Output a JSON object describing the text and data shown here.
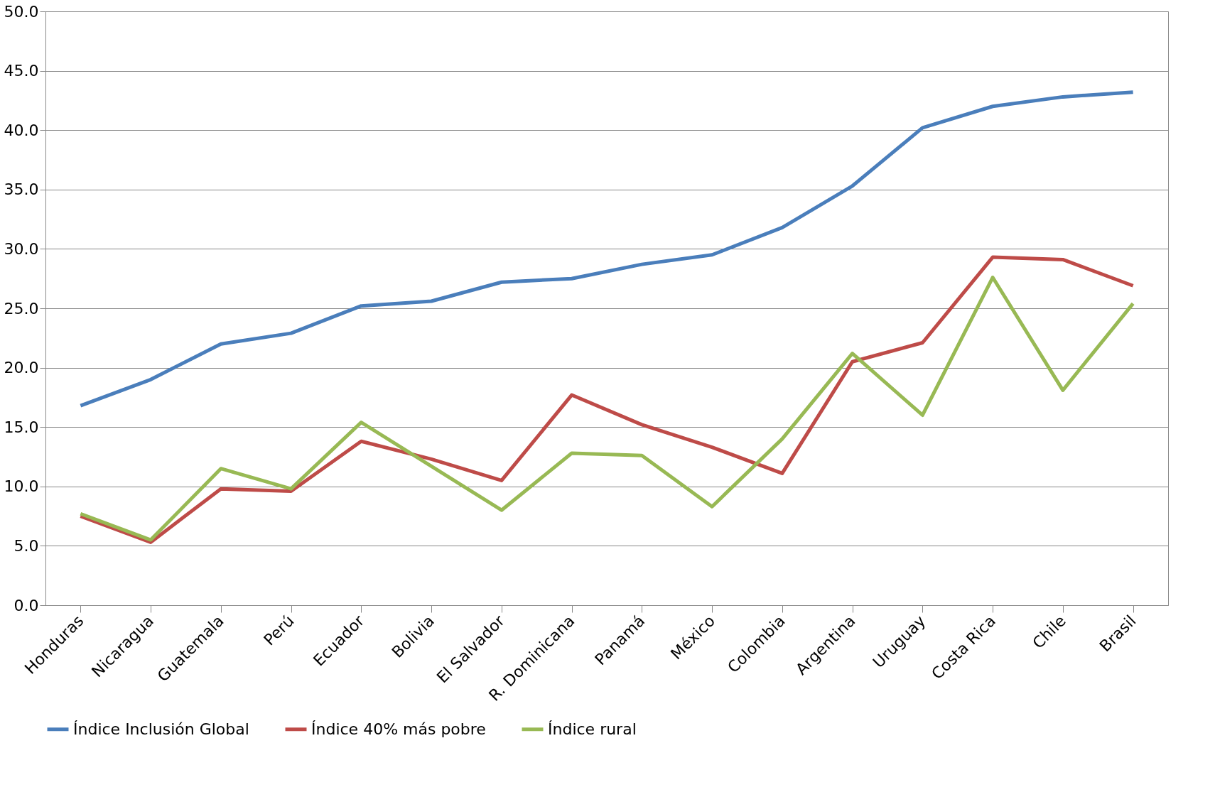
{
  "chart_data": {
    "type": "line",
    "categories": [
      "Honduras",
      "Nicaragua",
      "Guatemala",
      "Perú",
      "Ecuador",
      "Bolivia",
      "El Salvador",
      "R. Dominicana",
      "Panamá",
      "México",
      "Colombia",
      "Argentina",
      "Uruguay",
      "Costa Rica",
      "Chile",
      "Brasil"
    ],
    "series": [
      {
        "name": "Índice Inclusión Global",
        "color": "#4a7ebb",
        "values": [
          16.8,
          19.0,
          22.0,
          22.9,
          25.2,
          25.6,
          27.2,
          27.5,
          28.7,
          29.5,
          31.8,
          35.3,
          40.2,
          42.0,
          42.8,
          43.2
        ]
      },
      {
        "name": "Índice 40% más pobre",
        "color": "#be4b48",
        "values": [
          7.5,
          5.3,
          9.8,
          9.6,
          13.8,
          12.3,
          10.5,
          17.7,
          15.2,
          13.3,
          11.1,
          20.5,
          22.1,
          29.3,
          29.1,
          26.9
        ]
      },
      {
        "name": "Índice rural",
        "color": "#98b954",
        "values": [
          7.7,
          5.5,
          11.5,
          9.8,
          15.4,
          11.7,
          8.0,
          12.8,
          12.6,
          8.3,
          14.0,
          21.2,
          16.0,
          27.6,
          18.1,
          25.4
        ]
      }
    ],
    "ylim": [
      0,
      50
    ],
    "yticks": [
      {
        "value": 0,
        "label": "0.0"
      },
      {
        "value": 5,
        "label": "5.0"
      },
      {
        "value": 10,
        "label": "10.0"
      },
      {
        "value": 15,
        "label": "15.0"
      },
      {
        "value": 20,
        "label": "20.0"
      },
      {
        "value": 25,
        "label": "25.0"
      },
      {
        "value": 30,
        "label": "30.0"
      },
      {
        "value": 35,
        "label": "35.0"
      },
      {
        "value": 40,
        "label": "40.0"
      },
      {
        "value": 45,
        "label": "45.0"
      },
      {
        "value": 50,
        "label": "50.0"
      }
    ],
    "grid": "y",
    "legend": "bottom",
    "marker": "none",
    "line_style": "solid"
  }
}
